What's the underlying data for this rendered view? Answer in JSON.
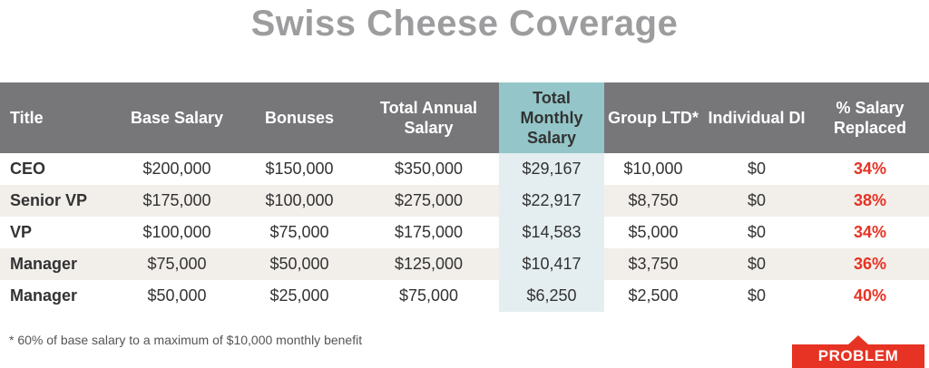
{
  "title": "Swiss Cheese Coverage",
  "table": {
    "headers": [
      "Title",
      "Base Salary",
      "Bonuses",
      "Total Annual Salary",
      "Total Monthly Salary",
      "Group LTD*",
      "Individual DI",
      "% Salary Replaced"
    ],
    "rows": [
      [
        "CEO",
        "$200,000",
        "$150,000",
        "$350,000",
        "$29,167",
        "$10,000",
        "$0",
        "34%"
      ],
      [
        "Senior VP",
        "$175,000",
        "$100,000",
        "$275,000",
        "$22,917",
        "$8,750",
        "$0",
        "38%"
      ],
      [
        "VP",
        "$100,000",
        "$75,000",
        "$175,000",
        "$14,583",
        "$5,000",
        "$0",
        "34%"
      ],
      [
        "Manager",
        "$75,000",
        "$50,000",
        "$125,000",
        "$10,417",
        "$3,750",
        "$0",
        "36%"
      ],
      [
        "Manager",
        "$50,000",
        "$25,000",
        "$75,000",
        "$6,250",
        "$2,500",
        "$0",
        "40%"
      ]
    ]
  },
  "footnote": "* 60% of base salary to a maximum of $10,000 monthly benefit",
  "badge": "PROBLEM",
  "colors": {
    "header_bg": "#77777a",
    "highlight_header": "#94c6c9",
    "highlight_cell": "#e4eef0",
    "alt_row": "#f2efeb",
    "percent_text": "#e63323",
    "badge_bg": "#e63323",
    "title_text": "#9d9d9f"
  }
}
